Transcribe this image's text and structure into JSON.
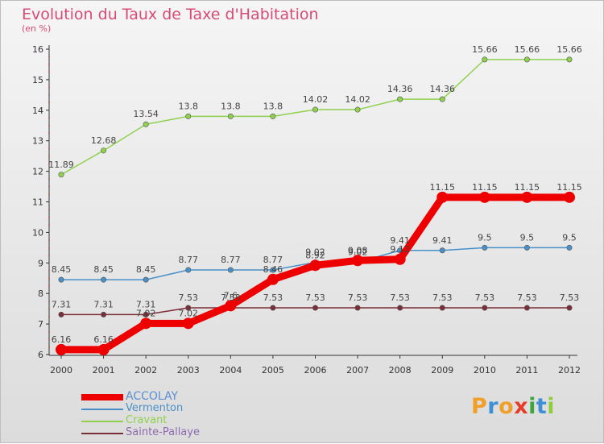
{
  "chart_data": {
    "type": "line",
    "title": "Evolution du Taux de Taxe d'Habitation",
    "subtitle": "(en %)",
    "x": [
      "2000",
      "2001",
      "2002",
      "2003",
      "2004",
      "2005",
      "2006",
      "2007",
      "2008",
      "2009",
      "2010",
      "2011",
      "2012"
    ],
    "ylim": [
      6,
      16
    ],
    "yticks": [
      6,
      7,
      8,
      9,
      10,
      11,
      12,
      13,
      14,
      15,
      16
    ],
    "grid": false,
    "legend_position": "bottom-left",
    "series": [
      {
        "name": "ACCOLAY",
        "color": "#ee0000",
        "values": [
          6.16,
          6.16,
          7.02,
          7.02,
          7.6,
          8.46,
          8.92,
          9.08,
          9.12,
          11.15,
          11.15,
          11.15,
          11.15
        ],
        "labels": [
          "6.16",
          "6.16",
          "7.02",
          "7.02",
          "7.6",
          "8.46",
          "8.92",
          "9.08",
          "9.12",
          "11.15",
          "11.15",
          "11.15",
          "11.15"
        ]
      },
      {
        "name": "Vermenton",
        "color": "#4a90c8",
        "values": [
          8.45,
          8.45,
          8.45,
          8.77,
          8.77,
          8.77,
          9.02,
          9.02,
          9.41,
          9.41,
          9.5,
          9.5,
          9.5
        ],
        "labels": [
          "8.45",
          "8.45",
          "8.45",
          "8.77",
          "8.77",
          "8.77",
          "9.02",
          "9.02",
          "9.41",
          "9.41",
          "9.5",
          "9.5",
          "9.5"
        ]
      },
      {
        "name": "Cravant",
        "color": "#8fd14f",
        "values": [
          11.89,
          12.68,
          13.54,
          13.8,
          13.8,
          13.8,
          14.02,
          14.02,
          14.36,
          14.36,
          15.66,
          15.66,
          15.66
        ],
        "labels": [
          "11.89",
          "12.68",
          "13.54",
          "13.8",
          "13.8",
          "13.8",
          "14.02",
          "14.02",
          "14.36",
          "14.36",
          "15.66",
          "15.66",
          "15.66"
        ]
      },
      {
        "name": "Sainte-Pallaye",
        "color": "#7a2e38",
        "values": [
          7.31,
          7.31,
          7.31,
          7.53,
          7.53,
          7.53,
          7.53,
          7.53,
          7.53,
          7.53,
          7.53,
          7.53,
          7.53
        ],
        "labels": [
          "7.31",
          "7.31",
          "7.31",
          "7.53",
          "7.53",
          "7.53",
          "7.53",
          "7.53",
          "7.53",
          "7.53",
          "7.53",
          "7.53",
          "7.53"
        ]
      }
    ]
  },
  "logo": {
    "letters": [
      "P",
      "r",
      "o",
      "x",
      "i",
      "t",
      "i"
    ],
    "colors": [
      "#f0a02a",
      "#3e8fd6",
      "#f0a02a",
      "#e63d2a",
      "#3aa83a",
      "#3e8fd6",
      "#8fcc3a"
    ]
  }
}
